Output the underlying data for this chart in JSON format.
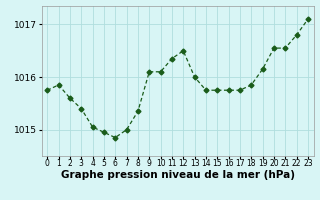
{
  "x": [
    0,
    1,
    2,
    3,
    4,
    5,
    6,
    7,
    8,
    9,
    10,
    11,
    12,
    13,
    14,
    15,
    16,
    17,
    18,
    19,
    20,
    21,
    22,
    23
  ],
  "y": [
    1015.75,
    1015.85,
    1015.6,
    1015.4,
    1015.05,
    1014.95,
    1014.85,
    1015.0,
    1015.35,
    1016.1,
    1016.1,
    1016.35,
    1016.5,
    1016.0,
    1015.75,
    1015.75,
    1015.75,
    1015.75,
    1015.85,
    1016.15,
    1016.55,
    1016.55,
    1016.8,
    1017.1
  ],
  "line_color": "#1a5c1a",
  "marker": "D",
  "marker_size": 2.5,
  "background_color": "#d8f5f5",
  "grid_color": "#b0dede",
  "xlabel": "Graphe pression niveau de la mer (hPa)",
  "xlabel_fontsize": 7.5,
  "ylim": [
    1014.5,
    1017.35
  ],
  "yticks": [
    1015,
    1016,
    1017
  ],
  "xticks": [
    0,
    1,
    2,
    3,
    4,
    5,
    6,
    7,
    8,
    9,
    10,
    11,
    12,
    13,
    14,
    15,
    16,
    17,
    18,
    19,
    20,
    21,
    22,
    23
  ],
  "tick_fontsize": 5.5,
  "ytick_fontsize": 6.5,
  "spine_color": "#999999"
}
